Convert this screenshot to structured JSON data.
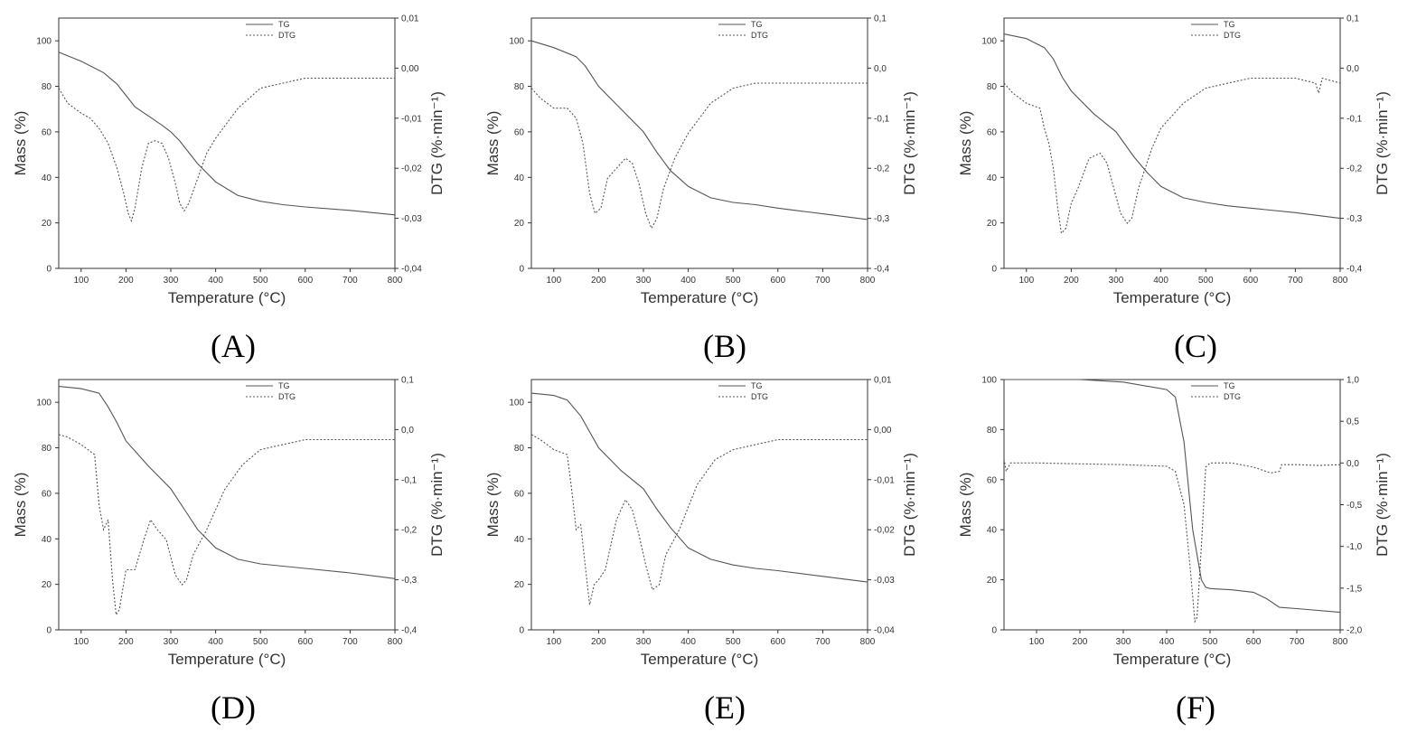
{
  "figure": {
    "background": "#ffffff",
    "tg_color": "#555555",
    "dtg_color": "#555555",
    "axis_color": "#333333"
  },
  "chart_data": [
    {
      "panel": "A",
      "caption": "(A)",
      "type": "line",
      "xlabel": "Temperature (°C)",
      "ylabel": "Mass (%)",
      "y2label": "DTG (%·min⁻¹)",
      "xlim": [
        50,
        800
      ],
      "ylim": [
        0,
        110
      ],
      "y2lim": [
        -0.04,
        0.01
      ],
      "xticks": [
        100,
        200,
        300,
        400,
        500,
        600,
        700,
        800
      ],
      "yticks": [
        0,
        20,
        40,
        60,
        80,
        100
      ],
      "y2ticks": [
        -0.04,
        -0.03,
        -0.02,
        -0.01,
        0.0,
        0.01
      ],
      "y2ticklabels": [
        "-0,04",
        "-0,03",
        "-0,02",
        "-0,01",
        "0,00",
        "0,01"
      ],
      "legend": [
        "TG",
        "DTG"
      ],
      "legend_position": "top-right",
      "series": [
        {
          "name": "TG",
          "axis": "left",
          "style": "solid",
          "x": [
            50,
            100,
            150,
            180,
            200,
            220,
            250,
            280,
            300,
            320,
            340,
            360,
            380,
            400,
            450,
            500,
            550,
            600,
            700,
            800
          ],
          "values": [
            95,
            91,
            86,
            81,
            76,
            71,
            67,
            63,
            60,
            56,
            51,
            46,
            42,
            38,
            32,
            29.5,
            28,
            27,
            25.5,
            23.5
          ]
        },
        {
          "name": "DTG",
          "axis": "right",
          "style": "dotted",
          "x": [
            50,
            70,
            100,
            120,
            140,
            160,
            180,
            195,
            205,
            212,
            220,
            235,
            250,
            265,
            280,
            295,
            310,
            320,
            330,
            340,
            360,
            380,
            400,
            450,
            500,
            550,
            600,
            650,
            700,
            750,
            800
          ],
          "values": [
            -0.004,
            -0.007,
            -0.009,
            -0.01,
            -0.012,
            -0.015,
            -0.02,
            -0.025,
            -0.029,
            -0.0305,
            -0.028,
            -0.02,
            -0.015,
            -0.0145,
            -0.015,
            -0.018,
            -0.023,
            -0.027,
            -0.0285,
            -0.027,
            -0.022,
            -0.017,
            -0.014,
            -0.008,
            -0.004,
            -0.003,
            -0.002,
            -0.002,
            -0.002,
            -0.002,
            -0.002
          ]
        }
      ]
    },
    {
      "panel": "B",
      "caption": "(B)",
      "type": "line",
      "xlabel": "Temperature (°C)",
      "ylabel": "Mass (%)",
      "y2label": "DTG (%·min⁻¹)",
      "xlim": [
        50,
        800
      ],
      "ylim": [
        0,
        110
      ],
      "y2lim": [
        -0.4,
        0.1
      ],
      "xticks": [
        100,
        200,
        300,
        400,
        500,
        600,
        700,
        800
      ],
      "yticks": [
        0,
        20,
        40,
        60,
        80,
        100
      ],
      "y2ticks": [
        -0.4,
        -0.3,
        -0.2,
        -0.1,
        0.0,
        0.1
      ],
      "y2ticklabels": [
        "-0,4",
        "-0,3",
        "-0,2",
        "-0,1",
        "0,0",
        "0,1"
      ],
      "legend": [
        "TG",
        "DTG"
      ],
      "legend_position": "top-right",
      "series": [
        {
          "name": "TG",
          "axis": "left",
          "style": "solid",
          "x": [
            50,
            100,
            150,
            170,
            200,
            250,
            300,
            330,
            360,
            400,
            450,
            500,
            550,
            600,
            700,
            800
          ],
          "values": [
            100,
            97,
            93,
            89,
            80,
            70,
            60,
            51,
            43,
            36,
            31,
            29,
            28,
            26.5,
            24,
            21.5
          ]
        },
        {
          "name": "DTG",
          "axis": "right",
          "style": "dotted",
          "x": [
            50,
            70,
            100,
            130,
            150,
            165,
            180,
            192,
            205,
            220,
            240,
            260,
            275,
            290,
            305,
            318,
            330,
            345,
            370,
            400,
            450,
            500,
            550,
            600,
            650,
            700,
            800
          ],
          "values": [
            -0.04,
            -0.06,
            -0.08,
            -0.08,
            -0.1,
            -0.15,
            -0.25,
            -0.29,
            -0.28,
            -0.22,
            -0.2,
            -0.18,
            -0.19,
            -0.23,
            -0.29,
            -0.32,
            -0.3,
            -0.24,
            -0.18,
            -0.13,
            -0.07,
            -0.04,
            -0.03,
            -0.03,
            -0.03,
            -0.03,
            -0.03
          ]
        }
      ]
    },
    {
      "panel": "C",
      "caption": "(C)",
      "type": "line",
      "xlabel": "Temperature (°C)",
      "ylabel": "Mass (%)",
      "y2label": "DTG (%·min⁻¹)",
      "xlim": [
        50,
        800
      ],
      "ylim": [
        0,
        110
      ],
      "y2lim": [
        -0.4,
        0.1
      ],
      "xticks": [
        100,
        200,
        300,
        400,
        500,
        600,
        700,
        800
      ],
      "yticks": [
        0,
        20,
        40,
        60,
        80,
        100
      ],
      "y2ticks": [
        -0.4,
        -0.3,
        -0.2,
        -0.1,
        0.0,
        0.1
      ],
      "y2ticklabels": [
        "-0,4",
        "-0,3",
        "-0,2",
        "-0,1",
        "0,0",
        "0,1"
      ],
      "legend": [
        "TG",
        "DTG"
      ],
      "legend_position": "top-right",
      "series": [
        {
          "name": "TG",
          "axis": "left",
          "style": "solid",
          "x": [
            50,
            100,
            140,
            160,
            180,
            200,
            250,
            300,
            340,
            370,
            400,
            450,
            500,
            550,
            600,
            700,
            800
          ],
          "values": [
            103,
            101,
            97,
            92,
            84,
            78,
            68,
            60,
            49,
            42,
            36,
            31,
            29,
            27.5,
            26.5,
            24.5,
            22
          ]
        },
        {
          "name": "DTG",
          "axis": "right",
          "style": "dotted",
          "x": [
            50,
            70,
            100,
            130,
            140,
            150,
            160,
            170,
            178,
            188,
            200,
            215,
            240,
            265,
            280,
            295,
            310,
            325,
            335,
            350,
            380,
            400,
            450,
            500,
            550,
            600,
            650,
            700,
            745,
            752,
            760,
            800
          ],
          "values": [
            -0.03,
            -0.05,
            -0.07,
            -0.08,
            -0.12,
            -0.15,
            -0.2,
            -0.28,
            -0.33,
            -0.32,
            -0.27,
            -0.24,
            -0.18,
            -0.17,
            -0.19,
            -0.24,
            -0.29,
            -0.31,
            -0.3,
            -0.24,
            -0.16,
            -0.12,
            -0.07,
            -0.04,
            -0.03,
            -0.02,
            -0.02,
            -0.02,
            -0.03,
            -0.05,
            -0.02,
            -0.03
          ]
        }
      ]
    },
    {
      "panel": "D",
      "caption": "(D)",
      "type": "line",
      "xlabel": "Temperature (°C)",
      "ylabel": "Mass (%)",
      "y2label": "DTG (%·min⁻¹)",
      "xlim": [
        50,
        800
      ],
      "ylim": [
        0,
        110
      ],
      "y2lim": [
        -0.4,
        0.1
      ],
      "xticks": [
        100,
        200,
        300,
        400,
        500,
        600,
        700,
        800
      ],
      "yticks": [
        0,
        20,
        40,
        60,
        80,
        100
      ],
      "y2ticks": [
        -0.4,
        -0.3,
        -0.2,
        -0.1,
        0.0,
        0.1
      ],
      "y2ticklabels": [
        "-0,4",
        "-0,3",
        "-0,2",
        "-0,1",
        "0,0",
        "0,1"
      ],
      "legend": [
        "TG",
        "DTG"
      ],
      "legend_position": "top-right",
      "series": [
        {
          "name": "TG",
          "axis": "left",
          "style": "solid",
          "x": [
            50,
            100,
            140,
            160,
            180,
            200,
            250,
            300,
            330,
            360,
            400,
            450,
            500,
            550,
            600,
            700,
            800
          ],
          "values": [
            107,
            106,
            104,
            98,
            91,
            83,
            72,
            62,
            53,
            44,
            36,
            31,
            29,
            28,
            27,
            25,
            22.5
          ]
        },
        {
          "name": "DTG",
          "axis": "right",
          "style": "dotted",
          "x": [
            50,
            70,
            100,
            130,
            140,
            150,
            160,
            170,
            178,
            185,
            200,
            220,
            240,
            255,
            270,
            290,
            310,
            325,
            335,
            350,
            380,
            420,
            460,
            500,
            550,
            600,
            650,
            700,
            750,
            800
          ],
          "values": [
            -0.01,
            -0.015,
            -0.03,
            -0.05,
            -0.15,
            -0.2,
            -0.18,
            -0.3,
            -0.37,
            -0.36,
            -0.28,
            -0.28,
            -0.22,
            -0.18,
            -0.2,
            -0.22,
            -0.29,
            -0.31,
            -0.3,
            -0.25,
            -0.2,
            -0.12,
            -0.07,
            -0.04,
            -0.03,
            -0.02,
            -0.02,
            -0.02,
            -0.02,
            -0.02
          ]
        }
      ]
    },
    {
      "panel": "E",
      "caption": "(E)",
      "type": "line",
      "xlabel": "Temperature (°C)",
      "ylabel": "Mass (%)",
      "y2label": "DTG (%·min⁻¹)",
      "xlim": [
        50,
        800
      ],
      "ylim": [
        0,
        110
      ],
      "y2lim": [
        -0.04,
        0.01
      ],
      "xticks": [
        100,
        200,
        300,
        400,
        500,
        600,
        700,
        800
      ],
      "yticks": [
        0,
        20,
        40,
        60,
        80,
        100
      ],
      "y2ticks": [
        -0.04,
        -0.03,
        -0.02,
        -0.01,
        0.0,
        0.01
      ],
      "y2ticklabels": [
        "-0,04",
        "-0,03",
        "-0,02",
        "-0,01",
        "0,00",
        "0,01"
      ],
      "legend": [
        "TG",
        "DTG"
      ],
      "legend_position": "top-right",
      "series": [
        {
          "name": "TG",
          "axis": "left",
          "style": "solid",
          "x": [
            50,
            100,
            130,
            160,
            180,
            200,
            250,
            300,
            330,
            360,
            400,
            450,
            500,
            550,
            600,
            700,
            800
          ],
          "values": [
            104,
            103,
            101,
            94,
            87,
            80,
            70,
            62,
            53,
            45,
            36,
            31,
            28.5,
            27,
            26,
            23.5,
            21
          ]
        },
        {
          "name": "DTG",
          "axis": "right",
          "style": "dotted",
          "x": [
            50,
            70,
            100,
            130,
            140,
            150,
            160,
            170,
            180,
            190,
            200,
            215,
            240,
            260,
            275,
            290,
            305,
            320,
            335,
            350,
            380,
            420,
            460,
            500,
            550,
            600,
            650,
            700,
            750,
            800
          ],
          "values": [
            -0.001,
            -0.002,
            -0.004,
            -0.005,
            -0.012,
            -0.02,
            -0.019,
            -0.027,
            -0.035,
            -0.031,
            -0.03,
            -0.028,
            -0.018,
            -0.014,
            -0.016,
            -0.021,
            -0.027,
            -0.032,
            -0.031,
            -0.025,
            -0.02,
            -0.011,
            -0.006,
            -0.004,
            -0.003,
            -0.002,
            -0.002,
            -0.002,
            -0.002,
            -0.002
          ]
        }
      ]
    },
    {
      "panel": "F",
      "caption": "(F)",
      "type": "line",
      "xlabel": "Temperature (°C)",
      "ylabel": "Mass (%)",
      "y2label": "DTG (%·min⁻¹)",
      "xlim": [
        25,
        800
      ],
      "ylim": [
        0,
        100
      ],
      "y2lim": [
        -2.0,
        1.0
      ],
      "xticks": [
        100,
        200,
        300,
        400,
        500,
        600,
        700,
        800
      ],
      "yticks": [
        0,
        20,
        40,
        60,
        80,
        100
      ],
      "y2ticks": [
        -2.0,
        -1.5,
        -1.0,
        -0.5,
        0.0,
        0.5,
        1.0
      ],
      "y2ticklabels": [
        "-2,0",
        "-1,5",
        "-1,0",
        "-0,5",
        "0,0",
        "0,5",
        "1,0"
      ],
      "legend": [
        "TG",
        "DTG"
      ],
      "legend_position": "top-right",
      "series": [
        {
          "name": "TG",
          "axis": "left",
          "style": "solid",
          "x": [
            25,
            100,
            200,
            300,
            400,
            420,
            440,
            460,
            480,
            490,
            500,
            550,
            600,
            630,
            660,
            700,
            800
          ],
          "values": [
            100,
            100,
            100,
            99,
            96,
            93,
            75,
            40,
            20,
            17,
            16.5,
            16,
            15,
            12.5,
            9,
            8.5,
            7
          ]
        },
        {
          "name": "DTG",
          "axis": "right",
          "style": "dotted",
          "x": [
            25,
            30,
            40,
            100,
            200,
            300,
            400,
            420,
            440,
            455,
            465,
            470,
            480,
            490,
            500,
            550,
            600,
            640,
            660,
            665,
            700,
            750,
            800
          ],
          "values": [
            0.05,
            -0.1,
            0.0,
            0.0,
            -0.01,
            -0.02,
            -0.04,
            -0.1,
            -0.5,
            -1.3,
            -1.9,
            -1.85,
            -1.0,
            -0.05,
            0.0,
            0.0,
            -0.05,
            -0.12,
            -0.1,
            -0.02,
            -0.02,
            -0.03,
            -0.02
          ]
        }
      ]
    }
  ]
}
